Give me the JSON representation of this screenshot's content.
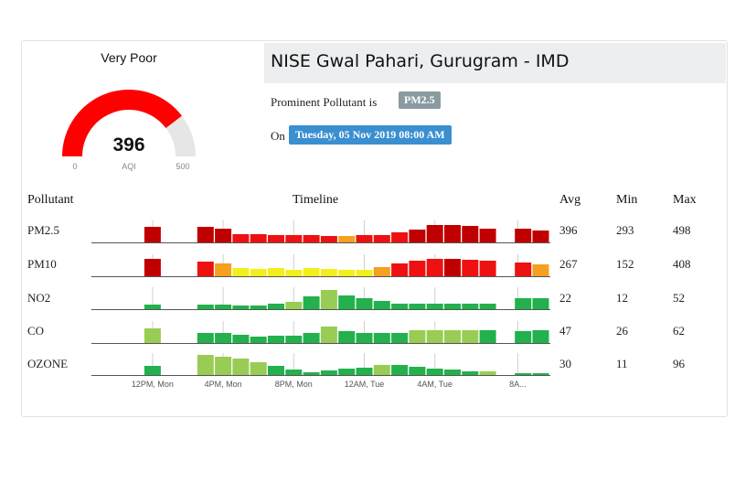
{
  "gauge": {
    "status": "Very Poor",
    "value": "396",
    "label": "AQI",
    "min_label": "0",
    "max_label": "500",
    "min": 0,
    "max": 500,
    "level": 396,
    "fill_color": "#ff0000",
    "track_color": "#e6e6e6"
  },
  "station": {
    "title": "NISE Gwal Pahari, Gurugram - IMD",
    "prominent_label": "Prominent Pollutant is",
    "prominent_value": "PM2.5",
    "on_label": "On",
    "datetime": "Tuesday, 05 Nov 2019 08:00 AM"
  },
  "headers": {
    "pollutant": "Pollutant",
    "timeline": "Timeline",
    "avg": "Avg",
    "min": "Min",
    "max": "Max"
  },
  "colors": {
    "dark_red": "#c00000",
    "red": "#ee1111",
    "orange": "#f5a020",
    "yellow": "#f3ef1c",
    "light_green": "#99cc55",
    "green": "#22b14c",
    "grey_badge": "#8a9ba0",
    "blue_badge": "#3a8fd1"
  },
  "rows": [
    {
      "name": "PM2.5",
      "avg": "396",
      "min": "293",
      "max": "498",
      "bars": [
        [
          3,
          17,
          "dark_red"
        ],
        [
          6,
          17,
          "dark_red"
        ],
        [
          7,
          15,
          "dark_red"
        ],
        [
          8,
          9,
          "red"
        ],
        [
          9,
          9,
          "red"
        ],
        [
          10,
          8,
          "red"
        ],
        [
          11,
          8,
          "red"
        ],
        [
          12,
          8,
          "red"
        ],
        [
          13,
          7,
          "red"
        ],
        [
          14,
          7,
          "orange"
        ],
        [
          15,
          8,
          "red"
        ],
        [
          16,
          8,
          "red"
        ],
        [
          17,
          11,
          "red"
        ],
        [
          18,
          14,
          "dark_red"
        ],
        [
          19,
          19,
          "dark_red"
        ],
        [
          20,
          19,
          "dark_red"
        ],
        [
          21,
          18,
          "dark_red"
        ],
        [
          22,
          15,
          "dark_red"
        ],
        [
          24,
          15,
          "dark_red"
        ],
        [
          25,
          13,
          "dark_red"
        ]
      ]
    },
    {
      "name": "PM10",
      "avg": "267",
      "min": "152",
      "max": "408",
      "bars": [
        [
          3,
          19,
          "dark_red"
        ],
        [
          6,
          16,
          "red"
        ],
        [
          7,
          14,
          "orange"
        ],
        [
          8,
          9,
          "yellow"
        ],
        [
          9,
          8,
          "yellow"
        ],
        [
          10,
          9,
          "yellow"
        ],
        [
          11,
          7,
          "yellow"
        ],
        [
          12,
          9,
          "yellow"
        ],
        [
          13,
          8,
          "yellow"
        ],
        [
          14,
          7,
          "yellow"
        ],
        [
          15,
          7,
          "yellow"
        ],
        [
          16,
          10,
          "orange"
        ],
        [
          17,
          14,
          "red"
        ],
        [
          18,
          17,
          "red"
        ],
        [
          19,
          19,
          "red"
        ],
        [
          20,
          19,
          "dark_red"
        ],
        [
          21,
          18,
          "red"
        ],
        [
          22,
          17,
          "red"
        ],
        [
          24,
          15,
          "red"
        ],
        [
          25,
          13,
          "orange"
        ]
      ]
    },
    {
      "name": "NO2",
      "avg": "22",
      "min": "12",
      "max": "52",
      "bars": [
        [
          3,
          5,
          "green"
        ],
        [
          6,
          5,
          "green"
        ],
        [
          7,
          5,
          "green"
        ],
        [
          8,
          4,
          "green"
        ],
        [
          9,
          4,
          "green"
        ],
        [
          10,
          6,
          "green"
        ],
        [
          11,
          8,
          "light_green"
        ],
        [
          12,
          14,
          "green"
        ],
        [
          13,
          21,
          "light_green"
        ],
        [
          14,
          15,
          "green"
        ],
        [
          15,
          12,
          "green"
        ],
        [
          16,
          9,
          "green"
        ],
        [
          17,
          6,
          "green"
        ],
        [
          18,
          6,
          "green"
        ],
        [
          19,
          6,
          "green"
        ],
        [
          20,
          6,
          "green"
        ],
        [
          21,
          6,
          "green"
        ],
        [
          22,
          6,
          "green"
        ],
        [
          24,
          12,
          "green"
        ],
        [
          25,
          12,
          "green"
        ]
      ]
    },
    {
      "name": "CO",
      "avg": "47",
      "min": "26",
      "max": "62",
      "bars": [
        [
          3,
          16,
          "light_green"
        ],
        [
          6,
          11,
          "green"
        ],
        [
          7,
          11,
          "green"
        ],
        [
          8,
          9,
          "green"
        ],
        [
          9,
          7,
          "green"
        ],
        [
          10,
          8,
          "green"
        ],
        [
          11,
          8,
          "green"
        ],
        [
          12,
          11,
          "green"
        ],
        [
          13,
          18,
          "light_green"
        ],
        [
          14,
          13,
          "green"
        ],
        [
          15,
          11,
          "green"
        ],
        [
          16,
          11,
          "green"
        ],
        [
          17,
          11,
          "green"
        ],
        [
          18,
          14,
          "light_green"
        ],
        [
          19,
          14,
          "light_green"
        ],
        [
          20,
          14,
          "light_green"
        ],
        [
          21,
          14,
          "light_green"
        ],
        [
          22,
          14,
          "green"
        ],
        [
          24,
          13,
          "green"
        ],
        [
          25,
          14,
          "green"
        ]
      ]
    },
    {
      "name": "OZONE",
      "avg": "30",
      "min": "11",
      "max": "96",
      "bars": [
        [
          3,
          10,
          "green"
        ],
        [
          6,
          22,
          "light_green"
        ],
        [
          7,
          20,
          "light_green"
        ],
        [
          8,
          18,
          "light_green"
        ],
        [
          9,
          14,
          "light_green"
        ],
        [
          10,
          10,
          "green"
        ],
        [
          11,
          6,
          "green"
        ],
        [
          12,
          3,
          "green"
        ],
        [
          13,
          5,
          "green"
        ],
        [
          14,
          7,
          "green"
        ],
        [
          15,
          8,
          "green"
        ],
        [
          16,
          11,
          "light_green"
        ],
        [
          17,
          11,
          "green"
        ],
        [
          18,
          9,
          "green"
        ],
        [
          19,
          7,
          "green"
        ],
        [
          20,
          6,
          "green"
        ],
        [
          21,
          4,
          "green"
        ],
        [
          22,
          4,
          "light_green"
        ],
        [
          24,
          2,
          "green"
        ],
        [
          25,
          2,
          "green"
        ]
      ]
    }
  ],
  "timeline": {
    "slots": 26,
    "ticks": [
      {
        "label": "12PM, Mon",
        "slot": 3
      },
      {
        "label": "4PM, Mon",
        "slot": 7
      },
      {
        "label": "8PM, Mon",
        "slot": 11
      },
      {
        "label": "12AM, Tue",
        "slot": 15
      },
      {
        "label": "4AM, Tue",
        "slot": 19
      },
      {
        "label": "8A...",
        "slot": 23.7
      }
    ]
  }
}
